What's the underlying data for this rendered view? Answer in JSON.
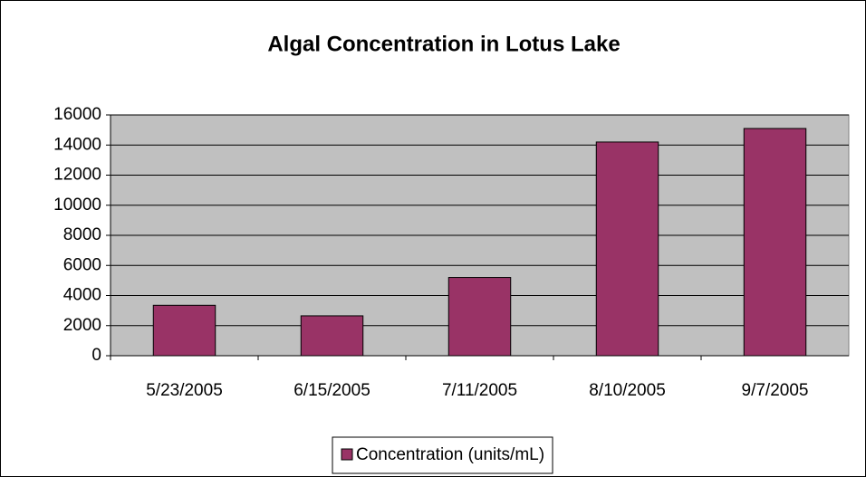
{
  "chart_data": {
    "type": "bar",
    "title": "Algal Concentration in Lotus Lake",
    "categories": [
      "5/23/2005",
      "6/15/2005",
      "7/11/2005",
      "8/10/2005",
      "9/7/2005"
    ],
    "series": [
      {
        "name": "Concentration (units/mL)",
        "color": "#993366",
        "values": [
          3350,
          2650,
          5200,
          14200,
          15100
        ]
      }
    ],
    "ylim": [
      0,
      16000
    ],
    "yticks": [
      0,
      2000,
      4000,
      6000,
      8000,
      10000,
      12000,
      14000,
      16000
    ],
    "grid": true,
    "legend": "bottom"
  }
}
